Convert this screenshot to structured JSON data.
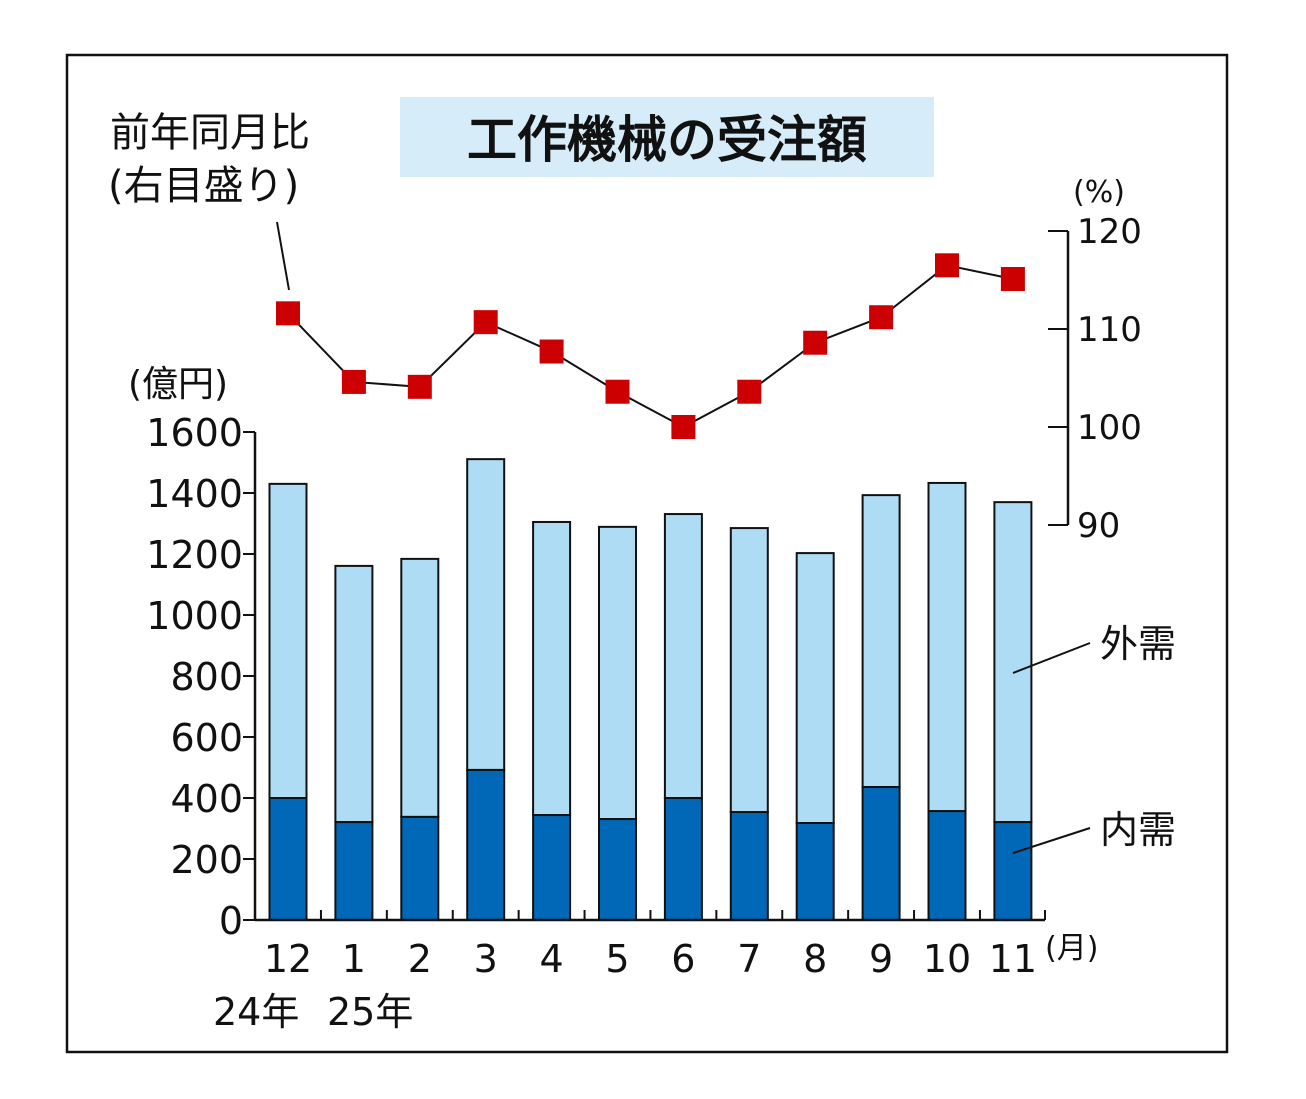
{
  "chart_data": {
    "type": "bar+line",
    "title": "工作機械の受注額",
    "categories": [
      "12",
      "1",
      "2",
      "3",
      "4",
      "5",
      "6",
      "7",
      "8",
      "9",
      "10",
      "11"
    ],
    "year_labels": [
      "24年",
      "25年"
    ],
    "x_unit": "(月)",
    "left_axis": {
      "unit": "(億円)",
      "ylim": [
        0,
        1600
      ],
      "ticks": [
        "0",
        "200",
        "400",
        "600",
        "800",
        "1000",
        "1200",
        "1400",
        "1600"
      ]
    },
    "right_axis": {
      "unit": "(%)",
      "ylim": [
        90,
        120
      ],
      "ticks": [
        "90",
        "100",
        "110",
        "120"
      ]
    },
    "series": [
      {
        "name": "内需",
        "type": "stacked-bar",
        "color": "#0068b7",
        "values": [
          400,
          321,
          338,
          492,
          344,
          331,
          400,
          354,
          318,
          436,
          357,
          321
        ]
      },
      {
        "name": "外需",
        "type": "stacked-bar",
        "color": "#aedcf5",
        "values": [
          1030,
          840,
          846,
          1019,
          961,
          958,
          931,
          931,
          885,
          957,
          1076,
          1049
        ]
      },
      {
        "name": "前年同月比",
        "note": "(右目盛り)",
        "type": "line",
        "axis": "right",
        "color": "#cc0000",
        "values": [
          111.6,
          104.6,
          104.1,
          110.7,
          107.7,
          103.6,
          100.0,
          103.6,
          108.6,
          111.2,
          116.5,
          115.1
        ]
      }
    ],
    "grid": false,
    "colors": {
      "title_bg": "#d6edf9",
      "marker": "#cc0000"
    }
  }
}
